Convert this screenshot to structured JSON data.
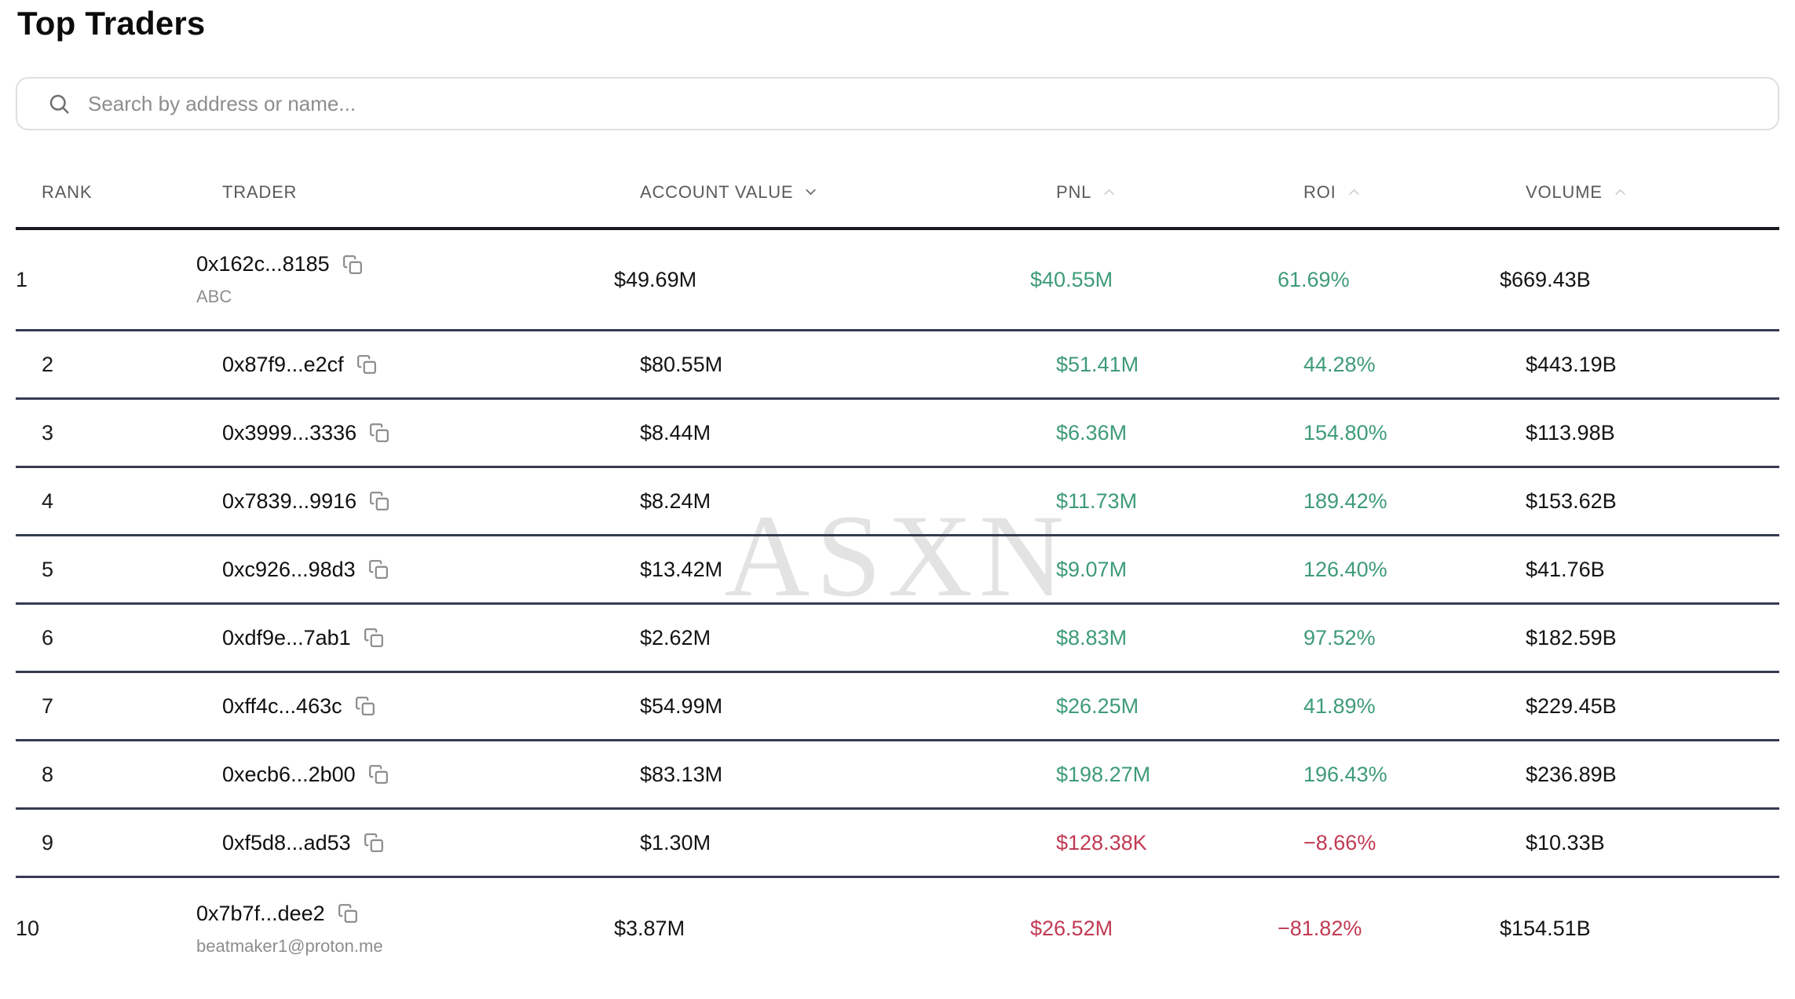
{
  "page": {
    "title": "Top Traders"
  },
  "search": {
    "placeholder": "Search by address or name..."
  },
  "watermark": {
    "text": "ASXN"
  },
  "colors": {
    "positive": "#3E9B77",
    "negative": "#C13A53",
    "divider": "#363B52"
  },
  "icons": {
    "search": "magnifier",
    "copy": "copy-duplicate-squares",
    "sort_desc": "chevron-down",
    "sort_asc": "chevron-up"
  },
  "table": {
    "columns": [
      {
        "key": "rank",
        "label": "RANK",
        "sort": null,
        "active": false
      },
      {
        "key": "trader",
        "label": "TRADER",
        "sort": null,
        "active": false
      },
      {
        "key": "account_value",
        "label": "ACCOUNT VALUE",
        "sort": "desc",
        "active": true
      },
      {
        "key": "pnl",
        "label": "PNL",
        "sort": "asc",
        "active": false
      },
      {
        "key": "roi",
        "label": "ROI",
        "sort": "asc",
        "active": false
      },
      {
        "key": "volume",
        "label": "VOLUME",
        "sort": "asc",
        "active": false
      }
    ],
    "rows": [
      {
        "rank": "1",
        "address": "0x162c...8185",
        "name": "ABC",
        "account_value": "$49.69M",
        "pnl": "$40.55M",
        "roi": "61.69%",
        "volume": "$669.43B",
        "trend": "positive"
      },
      {
        "rank": "2",
        "address": "0x87f9...e2cf",
        "name": "",
        "account_value": "$80.55M",
        "pnl": "$51.41M",
        "roi": "44.28%",
        "volume": "$443.19B",
        "trend": "positive"
      },
      {
        "rank": "3",
        "address": "0x3999...3336",
        "name": "",
        "account_value": "$8.44M",
        "pnl": "$6.36M",
        "roi": "154.80%",
        "volume": "$113.98B",
        "trend": "positive"
      },
      {
        "rank": "4",
        "address": "0x7839...9916",
        "name": "",
        "account_value": "$8.24M",
        "pnl": "$11.73M",
        "roi": "189.42%",
        "volume": "$153.62B",
        "trend": "positive"
      },
      {
        "rank": "5",
        "address": "0xc926...98d3",
        "name": "",
        "account_value": "$13.42M",
        "pnl": "$9.07M",
        "roi": "126.40%",
        "volume": "$41.76B",
        "trend": "positive"
      },
      {
        "rank": "6",
        "address": "0xdf9e...7ab1",
        "name": "",
        "account_value": "$2.62M",
        "pnl": "$8.83M",
        "roi": "97.52%",
        "volume": "$182.59B",
        "trend": "positive"
      },
      {
        "rank": "7",
        "address": "0xff4c...463c",
        "name": "",
        "account_value": "$54.99M",
        "pnl": "$26.25M",
        "roi": "41.89%",
        "volume": "$229.45B",
        "trend": "positive"
      },
      {
        "rank": "8",
        "address": "0xecb6...2b00",
        "name": "",
        "account_value": "$83.13M",
        "pnl": "$198.27M",
        "roi": "196.43%",
        "volume": "$236.89B",
        "trend": "positive"
      },
      {
        "rank": "9",
        "address": "0xf5d8...ad53",
        "name": "",
        "account_value": "$1.30M",
        "pnl": "$128.38K",
        "roi": "−8.66%",
        "volume": "$10.33B",
        "trend": "negative"
      },
      {
        "rank": "10",
        "address": "0x7b7f...dee2",
        "name": "beatmaker1@proton.me",
        "account_value": "$3.87M",
        "pnl": "$26.52M",
        "roi": "−81.82%",
        "volume": "$154.51B",
        "trend": "negative"
      }
    ]
  }
}
